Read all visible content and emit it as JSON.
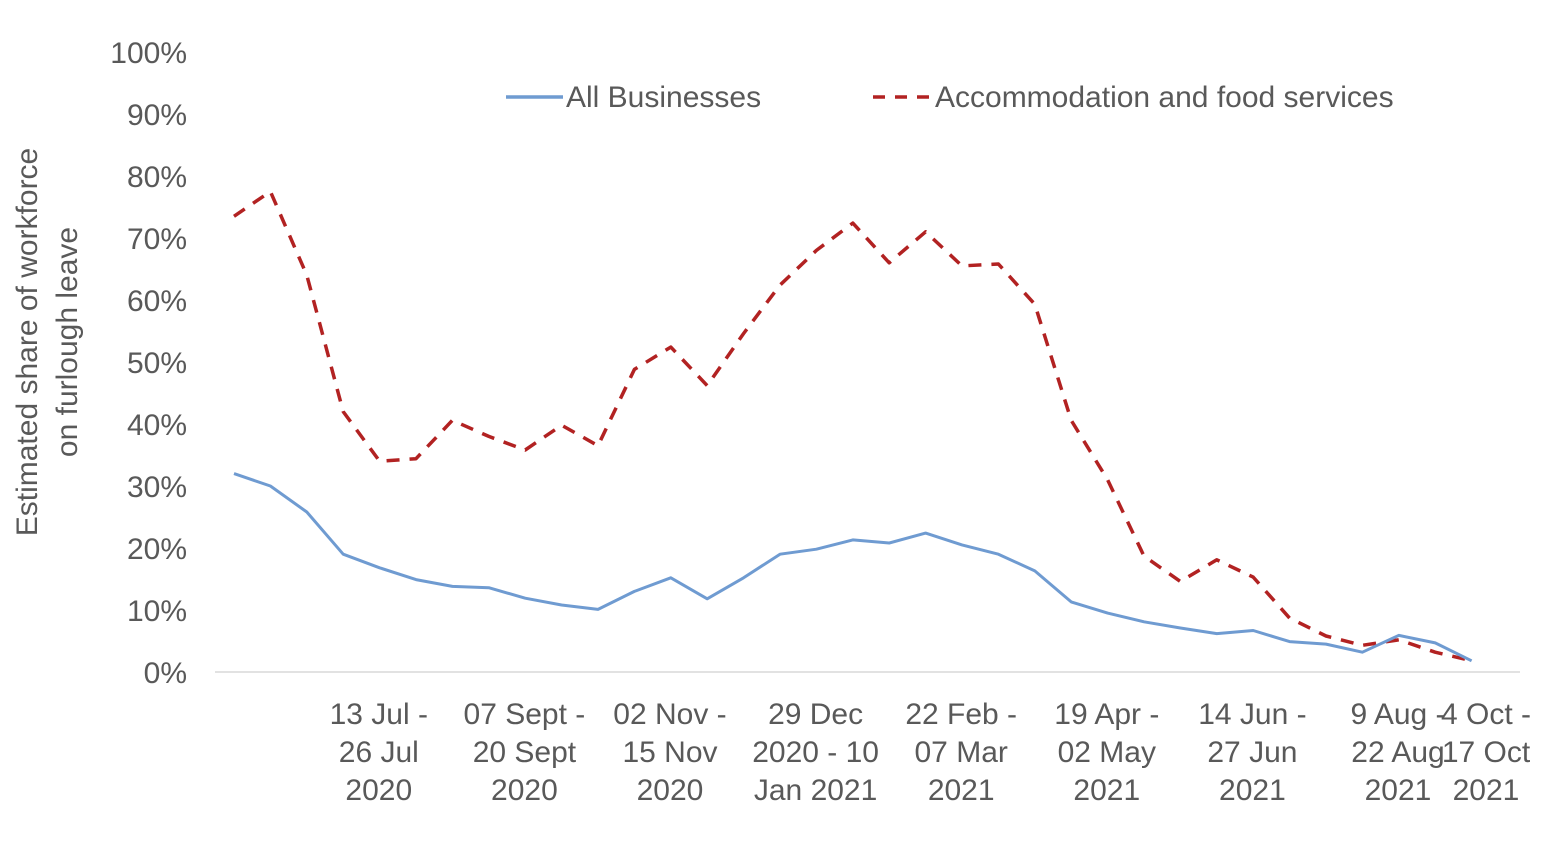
{
  "chart_data": {
    "type": "line",
    "title": "",
    "xlabel": "",
    "ylabel": [
      "Estimated share of workforce",
      "on furlough leave"
    ],
    "ylim": [
      0,
      100
    ],
    "y_ticks": [
      "0%",
      "10%",
      "20%",
      "30%",
      "40%",
      "50%",
      "60%",
      "70%",
      "80%",
      "90%",
      "100%"
    ],
    "grid": false,
    "legend_position": "top",
    "x_tick_labels": [
      {
        "index": 2,
        "lines": [
          "13 Jul -",
          "26 Jul",
          "2020"
        ]
      },
      {
        "index": 6,
        "lines": [
          "07 Sept -",
          "20 Sept",
          "2020"
        ]
      },
      {
        "index": 10,
        "lines": [
          "02 Nov -",
          "15 Nov",
          "2020"
        ]
      },
      {
        "index": 14,
        "lines": [
          "29 Dec",
          "2020 - 10",
          "Jan 2021"
        ]
      },
      {
        "index": 18,
        "lines": [
          "22 Feb -",
          "07 Mar",
          "2021"
        ]
      },
      {
        "index": 22,
        "lines": [
          "19 Apr -",
          "02 May",
          "2021"
        ]
      },
      {
        "index": 26,
        "lines": [
          "14 Jun -",
          "27 Jun",
          "2021"
        ]
      },
      {
        "index": 30,
        "lines": [
          "9 Aug -",
          "22 Aug",
          "2021"
        ]
      },
      {
        "index": 34,
        "lines": [
          "4 Oct -",
          "17 Oct",
          "2021"
        ]
      }
    ],
    "n_points": 35,
    "series": [
      {
        "name": "All Businesses",
        "color": "#6f9bd1",
        "style": "solid",
        "values": [
          32,
          30,
          25.8,
          19,
          16.8,
          14.9,
          13.8,
          13.6,
          11.9,
          10.8,
          10.1,
          13,
          15.2,
          11.8,
          15.2,
          19,
          19.8,
          21.3,
          20.8,
          22.4,
          20.5,
          19,
          16.3,
          11.3,
          9.5,
          8.1,
          7.1,
          6.2,
          6.7,
          4.9,
          4.5,
          3.2,
          5.9,
          4.7,
          1.8
        ]
      },
      {
        "name": "Accommodation and food services",
        "color": "#b22222",
        "style": "dashed",
        "values": [
          73.5,
          77.5,
          64,
          42,
          34,
          34.4,
          40.6,
          38,
          35.8,
          39.8,
          36.5,
          48.8,
          52.4,
          46.2,
          54.6,
          62.4,
          68,
          72.4,
          66,
          71,
          65.5,
          65.8,
          59.3,
          40.6,
          31,
          18.7,
          14.6,
          18.1,
          15.3,
          8.7,
          5.8,
          4.3,
          5.2,
          3.2,
          1.8
        ]
      }
    ]
  }
}
